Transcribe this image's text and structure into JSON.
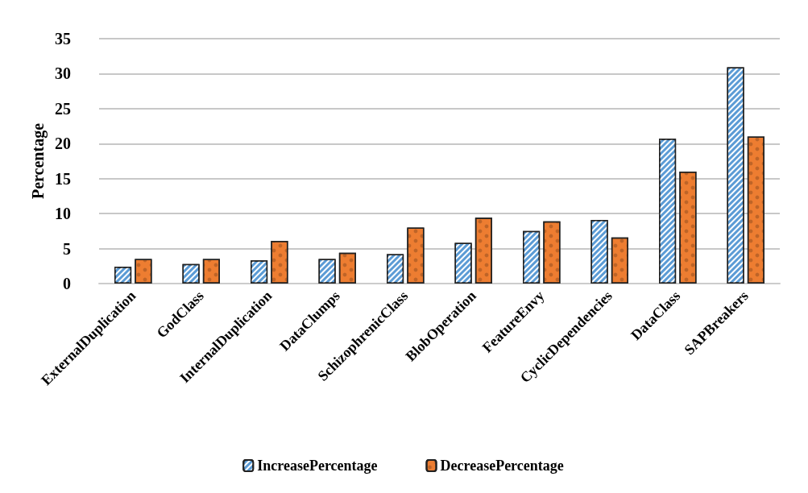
{
  "chart_data": {
    "type": "bar",
    "ylabel": "Percentage",
    "categories": [
      "ExternalDuplication",
      "GodClass",
      "InternalDuplication",
      "DataClumps",
      "SchizophrenicClass",
      "BlobOperation",
      "FeatureEnvy",
      "CyclicDependencies",
      "DataClass",
      "SAPBreakers"
    ],
    "series": [
      {
        "name": "IncreasePercentage",
        "color": "#5b9bd5",
        "values": [
          2.4,
          2.8,
          3.3,
          3.5,
          4.2,
          5.8,
          7.5,
          9.1,
          20.7,
          30.9
        ]
      },
      {
        "name": "DecreasePercentage",
        "color": "#ed7d31",
        "values": [
          3.5,
          3.5,
          6.1,
          4.4,
          8.0,
          9.4,
          8.9,
          6.6,
          16.0,
          21.0
        ]
      }
    ],
    "ylim": [
      0,
      35
    ],
    "yticks": [
      0,
      5,
      10,
      15,
      20,
      25,
      30,
      35
    ],
    "grid": "y",
    "legend": "bottom"
  }
}
